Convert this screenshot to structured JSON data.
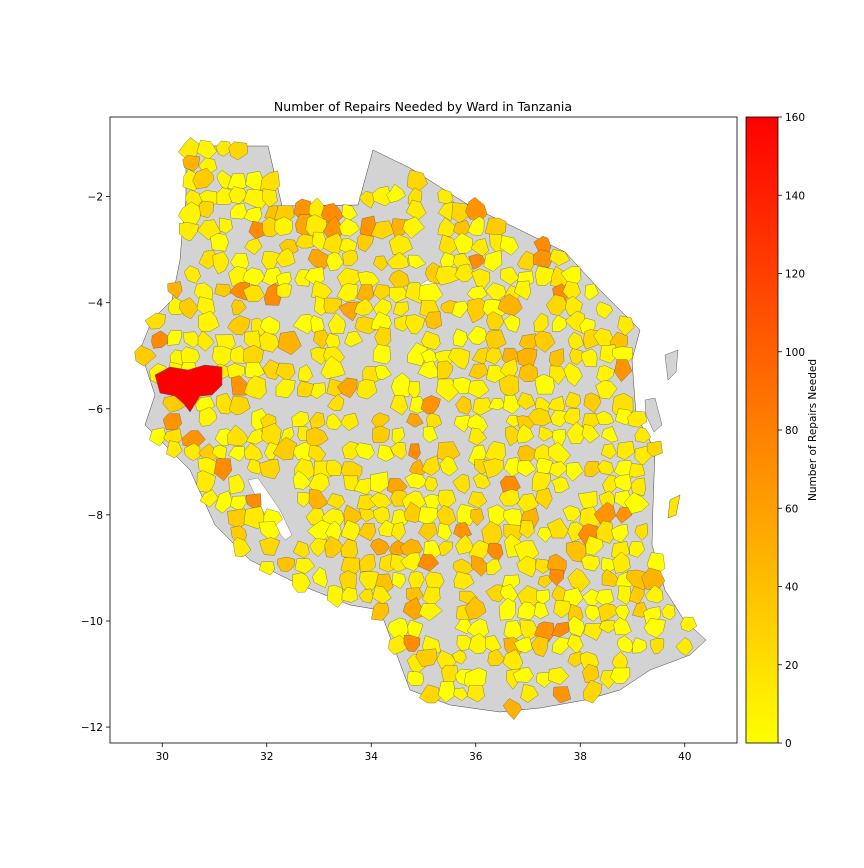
{
  "chart_data": {
    "type": "choropleth",
    "title": "Number of Repairs Needed by Ward in Tanzania",
    "xlabel": "",
    "ylabel": "",
    "x_ticks": [
      30,
      32,
      34,
      36,
      38,
      40
    ],
    "y_ticks": [
      -2,
      -4,
      -6,
      -8,
      -10,
      -12
    ],
    "xlim": [
      29.0,
      41.0
    ],
    "ylim": [
      -12.3,
      -0.5
    ],
    "colorbar": {
      "label": "Number of Repairs Needed",
      "range": [
        0,
        160
      ],
      "ticks": [
        0,
        20,
        40,
        60,
        80,
        100,
        120,
        140,
        160
      ],
      "colormap": "autumn_r",
      "color_low": "#ffff00",
      "color_high": "#ff0000"
    },
    "no_data_color": "#d3d3d3",
    "highlight": {
      "value": 160
    }
  }
}
